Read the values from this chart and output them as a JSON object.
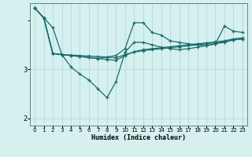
{
  "xlabel": "Humidex (Indice chaleur)",
  "bg_color": "#d6f0f0",
  "grid_color": "#b8dede",
  "line_color": "#1a6b6b",
  "xlim": [
    -0.5,
    23.5
  ],
  "ylim": [
    1.85,
    4.35
  ],
  "yticks": [
    2,
    3
  ],
  "xticks": [
    0,
    1,
    2,
    3,
    4,
    5,
    6,
    7,
    8,
    9,
    10,
    11,
    12,
    13,
    14,
    15,
    16,
    17,
    18,
    19,
    20,
    21,
    22,
    23
  ],
  "x": [
    0,
    1,
    2,
    3,
    4,
    5,
    6,
    7,
    8,
    9,
    10,
    11,
    12,
    13,
    14,
    15,
    16,
    17,
    18,
    19,
    20,
    21,
    22,
    23
  ],
  "series": [
    [
      4.25,
      4.05,
      3.85,
      3.3,
      3.05,
      2.9,
      2.78,
      2.6,
      2.42,
      2.75,
      3.35,
      3.55,
      3.55,
      3.5,
      3.45,
      3.42,
      3.4,
      3.42,
      3.45,
      3.48,
      3.52,
      3.55,
      3.6,
      3.62
    ],
    [
      4.25,
      4.05,
      3.32,
      3.3,
      3.29,
      3.28,
      3.27,
      3.26,
      3.25,
      3.23,
      3.3,
      3.35,
      3.38,
      3.4,
      3.42,
      3.44,
      3.46,
      3.48,
      3.5,
      3.52,
      3.54,
      3.56,
      3.6,
      3.62
    ],
    [
      4.25,
      4.05,
      3.32,
      3.3,
      3.28,
      3.26,
      3.24,
      3.22,
      3.2,
      3.18,
      3.28,
      3.36,
      3.4,
      3.42,
      3.44,
      3.46,
      3.48,
      3.5,
      3.52,
      3.54,
      3.56,
      3.58,
      3.62,
      3.64
    ],
    [
      4.25,
      4.05,
      3.32,
      3.3,
      3.28,
      3.26,
      3.24,
      3.22,
      3.25,
      3.28,
      3.42,
      3.95,
      3.95,
      3.75,
      3.7,
      3.58,
      3.55,
      3.52,
      3.5,
      3.48,
      3.52,
      3.88,
      3.78,
      3.75
    ]
  ]
}
